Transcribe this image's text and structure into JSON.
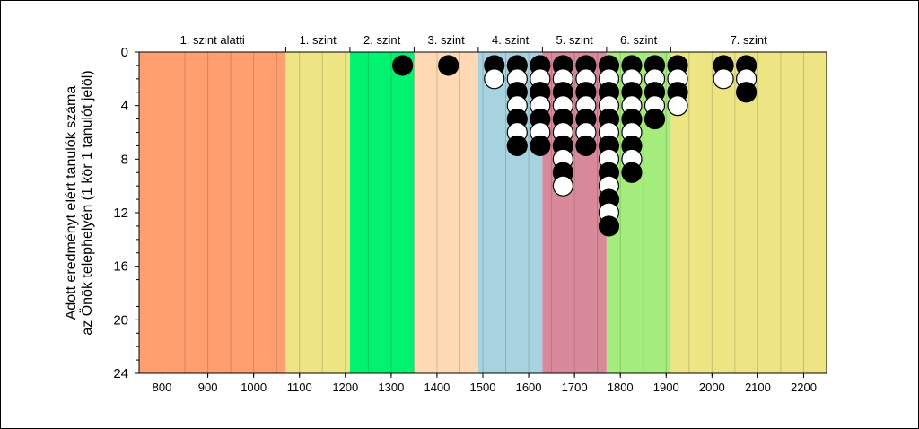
{
  "chart_data": {
    "type": "scatter",
    "title": "",
    "ylabel_lines": [
      "Adott eredményt elért tanulók száma",
      "az Önök telephelyén (1 kör 1 tanulót jelöl)"
    ],
    "xlabel": "",
    "xlim": [
      750,
      2250
    ],
    "ylim": [
      0,
      24
    ],
    "y_inverted": true,
    "x_ticks": [
      800,
      900,
      1000,
      1100,
      1200,
      1300,
      1400,
      1500,
      1600,
      1700,
      1800,
      1900,
      2000,
      2100,
      2200
    ],
    "y_ticks": [
      0,
      4,
      8,
      12,
      16,
      20,
      24
    ],
    "minor_gridlines_every": 50,
    "level_bands": [
      {
        "label": "1. szint alatti",
        "from": 750,
        "to": 1070,
        "color": "#FF9E6E"
      },
      {
        "label": "1. szint",
        "from": 1070,
        "to": 1210,
        "color": "#EDE483"
      },
      {
        "label": "2. szint",
        "from": 1210,
        "to": 1350,
        "color": "#00F26E"
      },
      {
        "label": "3. szint",
        "from": 1350,
        "to": 1490,
        "color": "#FFD9B3"
      },
      {
        "label": "4. szint",
        "from": 1490,
        "to": 1630,
        "color": "#A7D3E1"
      },
      {
        "label": "5. szint",
        "from": 1630,
        "to": 1770,
        "color": "#D98A9A"
      },
      {
        "label": "6. szint",
        "from": 1770,
        "to": 1910,
        "color": "#A4EC7B"
      },
      {
        "label": "7. szint",
        "from": 1910,
        "to": 2250,
        "color": "#EDE483"
      }
    ],
    "marker_colors": {
      "filled": "#000000",
      "hollow": "#ffffff"
    },
    "columns": [
      {
        "x": 1325,
        "count": 1
      },
      {
        "x": 1425,
        "count": 1
      },
      {
        "x": 1525,
        "count": 2
      },
      {
        "x": 1575,
        "count": 7
      },
      {
        "x": 1625,
        "count": 7
      },
      {
        "x": 1675,
        "count": 10
      },
      {
        "x": 1725,
        "count": 7
      },
      {
        "x": 1775,
        "count": 13
      },
      {
        "x": 1825,
        "count": 9
      },
      {
        "x": 1875,
        "count": 5
      },
      {
        "x": 1925,
        "count": 4
      },
      {
        "x": 2025,
        "count": 2
      },
      {
        "x": 2075,
        "count": 3
      }
    ]
  }
}
